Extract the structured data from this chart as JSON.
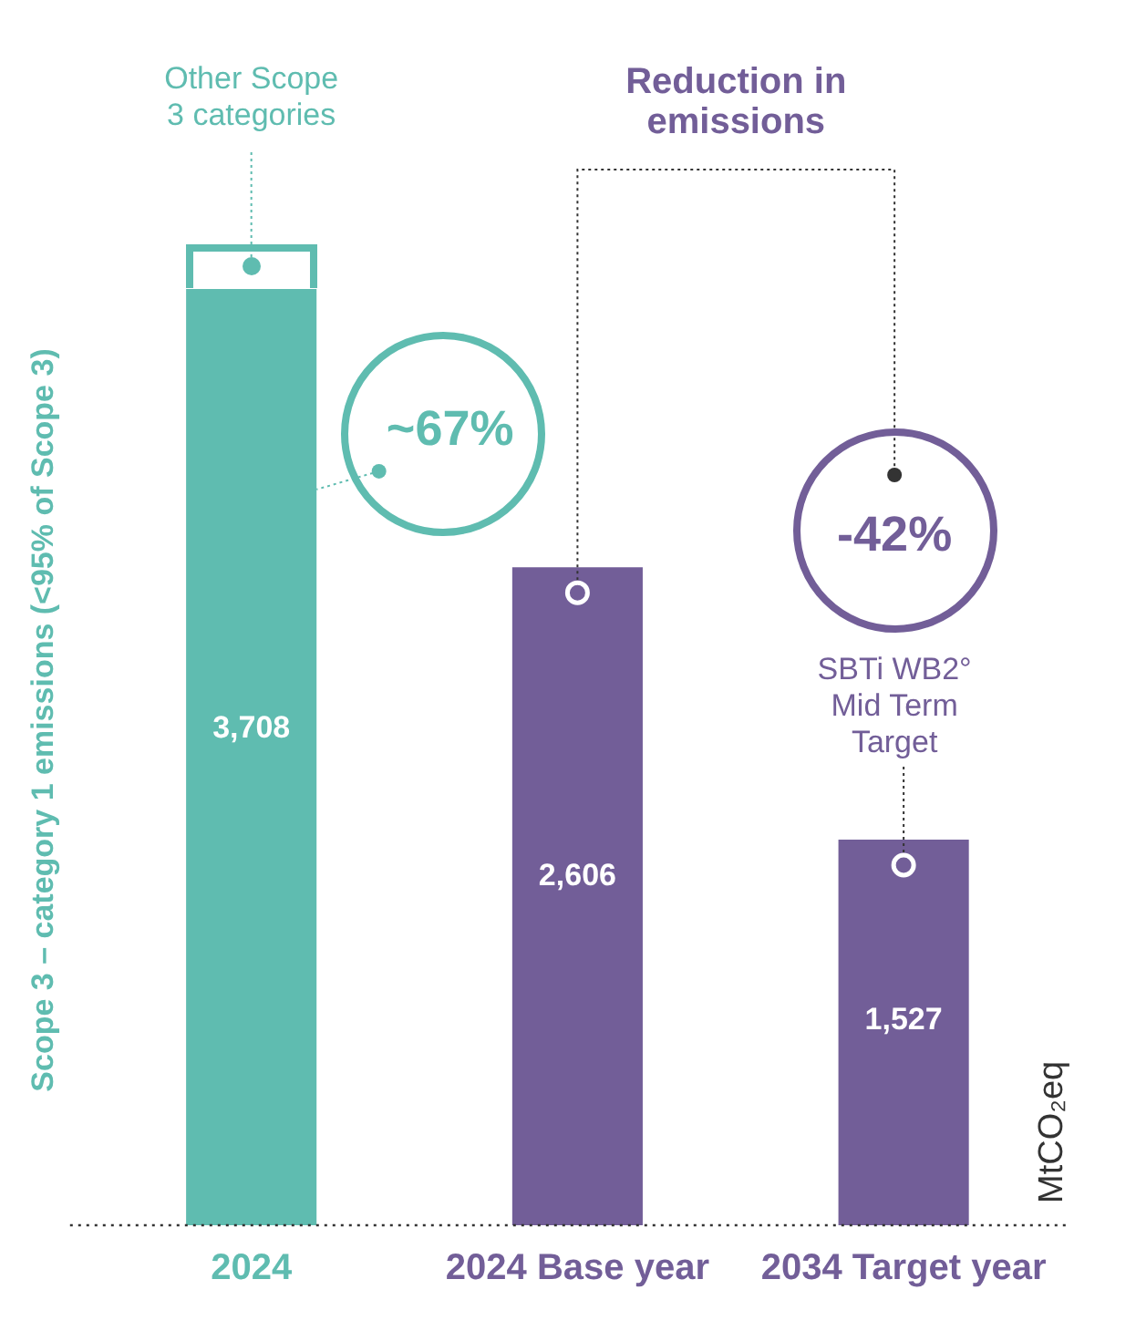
{
  "chart_data": {
    "type": "bar",
    "categories": [
      "2024",
      "2024 Base year",
      "2034 Target year"
    ],
    "series": [
      {
        "colors": [
          "#5fbcb0",
          "#725e98",
          "#725e98"
        ],
        "values": [
          3708,
          2606,
          1527
        ],
        "value_labels": [
          "3,708",
          "2,606",
          "1,527"
        ]
      }
    ],
    "grid": false,
    "legend": false,
    "ylabel": "Scope 3 – category 1 emissions (<95% of Scope 3)",
    "annotations": [
      "Other Scope 3 categories",
      "~67%",
      "Reduction in emissions",
      "-42%",
      "SBTi WB2° Mid Term Target",
      "MtCO₂eq"
    ]
  }
}
